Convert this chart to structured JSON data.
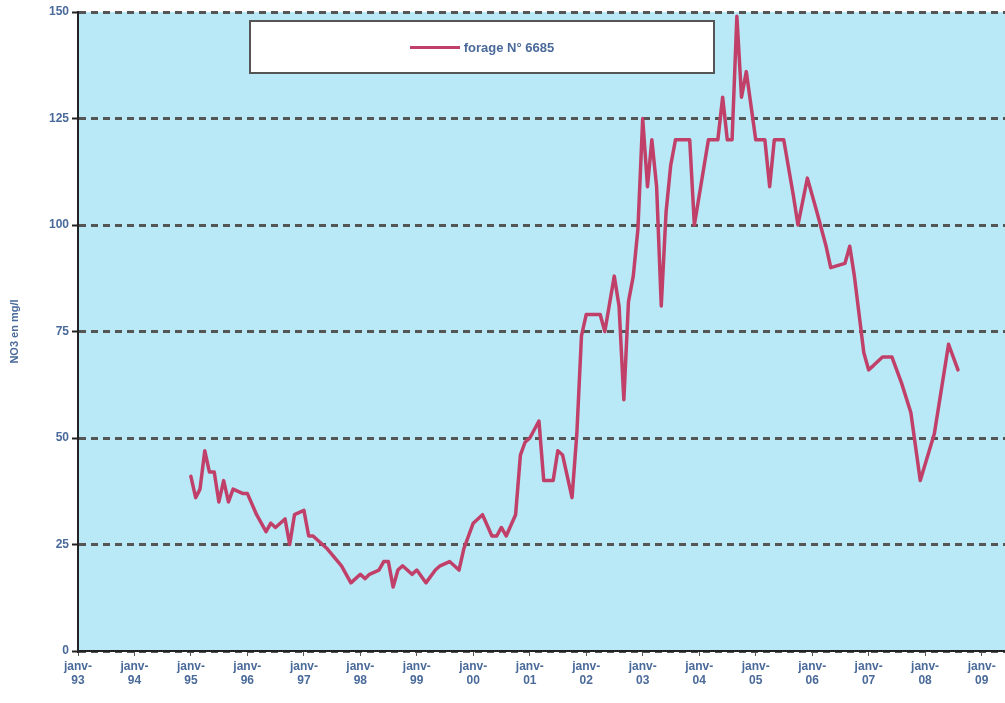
{
  "chart_data": {
    "type": "line",
    "ylabel": "NO3 en mg/l",
    "legend": "top",
    "grid": "y",
    "marker": "none",
    "line_style": "solid",
    "ylim": [
      0,
      150
    ],
    "yticks": [
      0,
      25,
      50,
      75,
      100,
      125,
      150
    ],
    "xlim": [
      "1993-01",
      "2009-06"
    ],
    "xticks": [
      {
        "value": "1993-01",
        "label": "janv-93"
      },
      {
        "value": "1994-01",
        "label": "janv-94"
      },
      {
        "value": "1995-01",
        "label": "janv-95"
      },
      {
        "value": "1996-01",
        "label": "janv-96"
      },
      {
        "value": "1997-01",
        "label": "janv-97"
      },
      {
        "value": "1998-01",
        "label": "janv-98"
      },
      {
        "value": "1999-01",
        "label": "janv-99"
      },
      {
        "value": "2000-01",
        "label": "janv-00"
      },
      {
        "value": "2001-01",
        "label": "janv-01"
      },
      {
        "value": "2002-01",
        "label": "janv-02"
      },
      {
        "value": "2003-01",
        "label": "janv-03"
      },
      {
        "value": "2004-01",
        "label": "janv-04"
      },
      {
        "value": "2005-01",
        "label": "janv-05"
      },
      {
        "value": "2006-01",
        "label": "janv-06"
      },
      {
        "value": "2007-01",
        "label": "janv-07"
      },
      {
        "value": "2008-01",
        "label": "janv-08"
      },
      {
        "value": "2009-01",
        "label": "janv-09"
      }
    ],
    "x": [
      "1995-01",
      "1995-02",
      "1995-03",
      "1995-04",
      "1995-05",
      "1995-06",
      "1995-07",
      "1995-08",
      "1995-09",
      "1995-10",
      "1995-12",
      "1996-01",
      "1996-03",
      "1996-05",
      "1996-06",
      "1996-07",
      "1996-09",
      "1996-10",
      "1996-11",
      "1997-01",
      "1997-02",
      "1997-03",
      "1997-05",
      "1997-06",
      "1997-09",
      "1997-11",
      "1998-01",
      "1998-02",
      "1998-03",
      "1998-05",
      "1998-06",
      "1998-07",
      "1998-08",
      "1998-09",
      "1998-10",
      "1998-12",
      "1999-01",
      "1999-03",
      "1999-05",
      "1999-06",
      "1999-08",
      "1999-10",
      "1999-11",
      "2000-01",
      "2000-03",
      "2000-05",
      "2000-06",
      "2000-07",
      "2000-08",
      "2000-10",
      "2000-11",
      "2000-12",
      "2001-01",
      "2001-03",
      "2001-04",
      "2001-06",
      "2001-07",
      "2001-08",
      "2001-10",
      "2001-11",
      "2001-12",
      "2002-01",
      "2002-02",
      "2002-04",
      "2002-05",
      "2002-07",
      "2002-08",
      "2002-09",
      "2002-10",
      "2002-11",
      "2002-12",
      "2003-01",
      "2003-02",
      "2003-03",
      "2003-04",
      "2003-05",
      "2003-06",
      "2003-07",
      "2003-08",
      "2003-11",
      "2003-12",
      "2004-03",
      "2004-05",
      "2004-06",
      "2004-07",
      "2004-08",
      "2004-09",
      "2004-10",
      "2004-11",
      "2005-01",
      "2005-03",
      "2005-04",
      "2005-05",
      "2005-07",
      "2005-09",
      "2005-10",
      "2005-12",
      "2006-02",
      "2006-04",
      "2006-05",
      "2006-08",
      "2006-09",
      "2006-10",
      "2006-12",
      "2007-01",
      "2007-02",
      "2007-04",
      "2007-06",
      "2007-08",
      "2007-10",
      "2007-12",
      "2008-03",
      "2008-06",
      "2008-08"
    ],
    "series": [
      {
        "name": "forage N° 6685",
        "color": "#c0406a",
        "values": [
          41,
          36,
          38,
          47,
          42,
          42,
          35,
          40,
          35,
          38,
          37,
          37,
          32,
          28,
          30,
          29,
          31,
          25,
          32,
          33,
          27,
          27,
          25,
          24,
          20,
          16,
          18,
          17,
          18,
          19,
          21,
          21,
          15,
          19,
          20,
          18,
          19,
          16,
          19,
          20,
          21,
          19,
          24,
          30,
          32,
          27,
          27,
          29,
          27,
          32,
          46,
          49,
          50,
          54,
          40,
          40,
          47,
          46,
          36,
          51,
          74,
          79,
          79,
          79,
          75,
          88,
          81,
          59,
          82,
          88,
          99,
          125,
          109,
          120,
          109,
          81,
          103,
          114,
          120,
          120,
          100,
          120,
          120,
          130,
          120,
          120,
          149,
          130,
          136,
          120,
          120,
          109,
          120,
          120,
          107,
          100,
          111,
          103,
          95,
          90,
          91,
          95,
          88,
          70,
          66,
          67,
          69,
          69,
          63,
          56,
          40,
          51,
          72,
          66
        ]
      }
    ]
  }
}
